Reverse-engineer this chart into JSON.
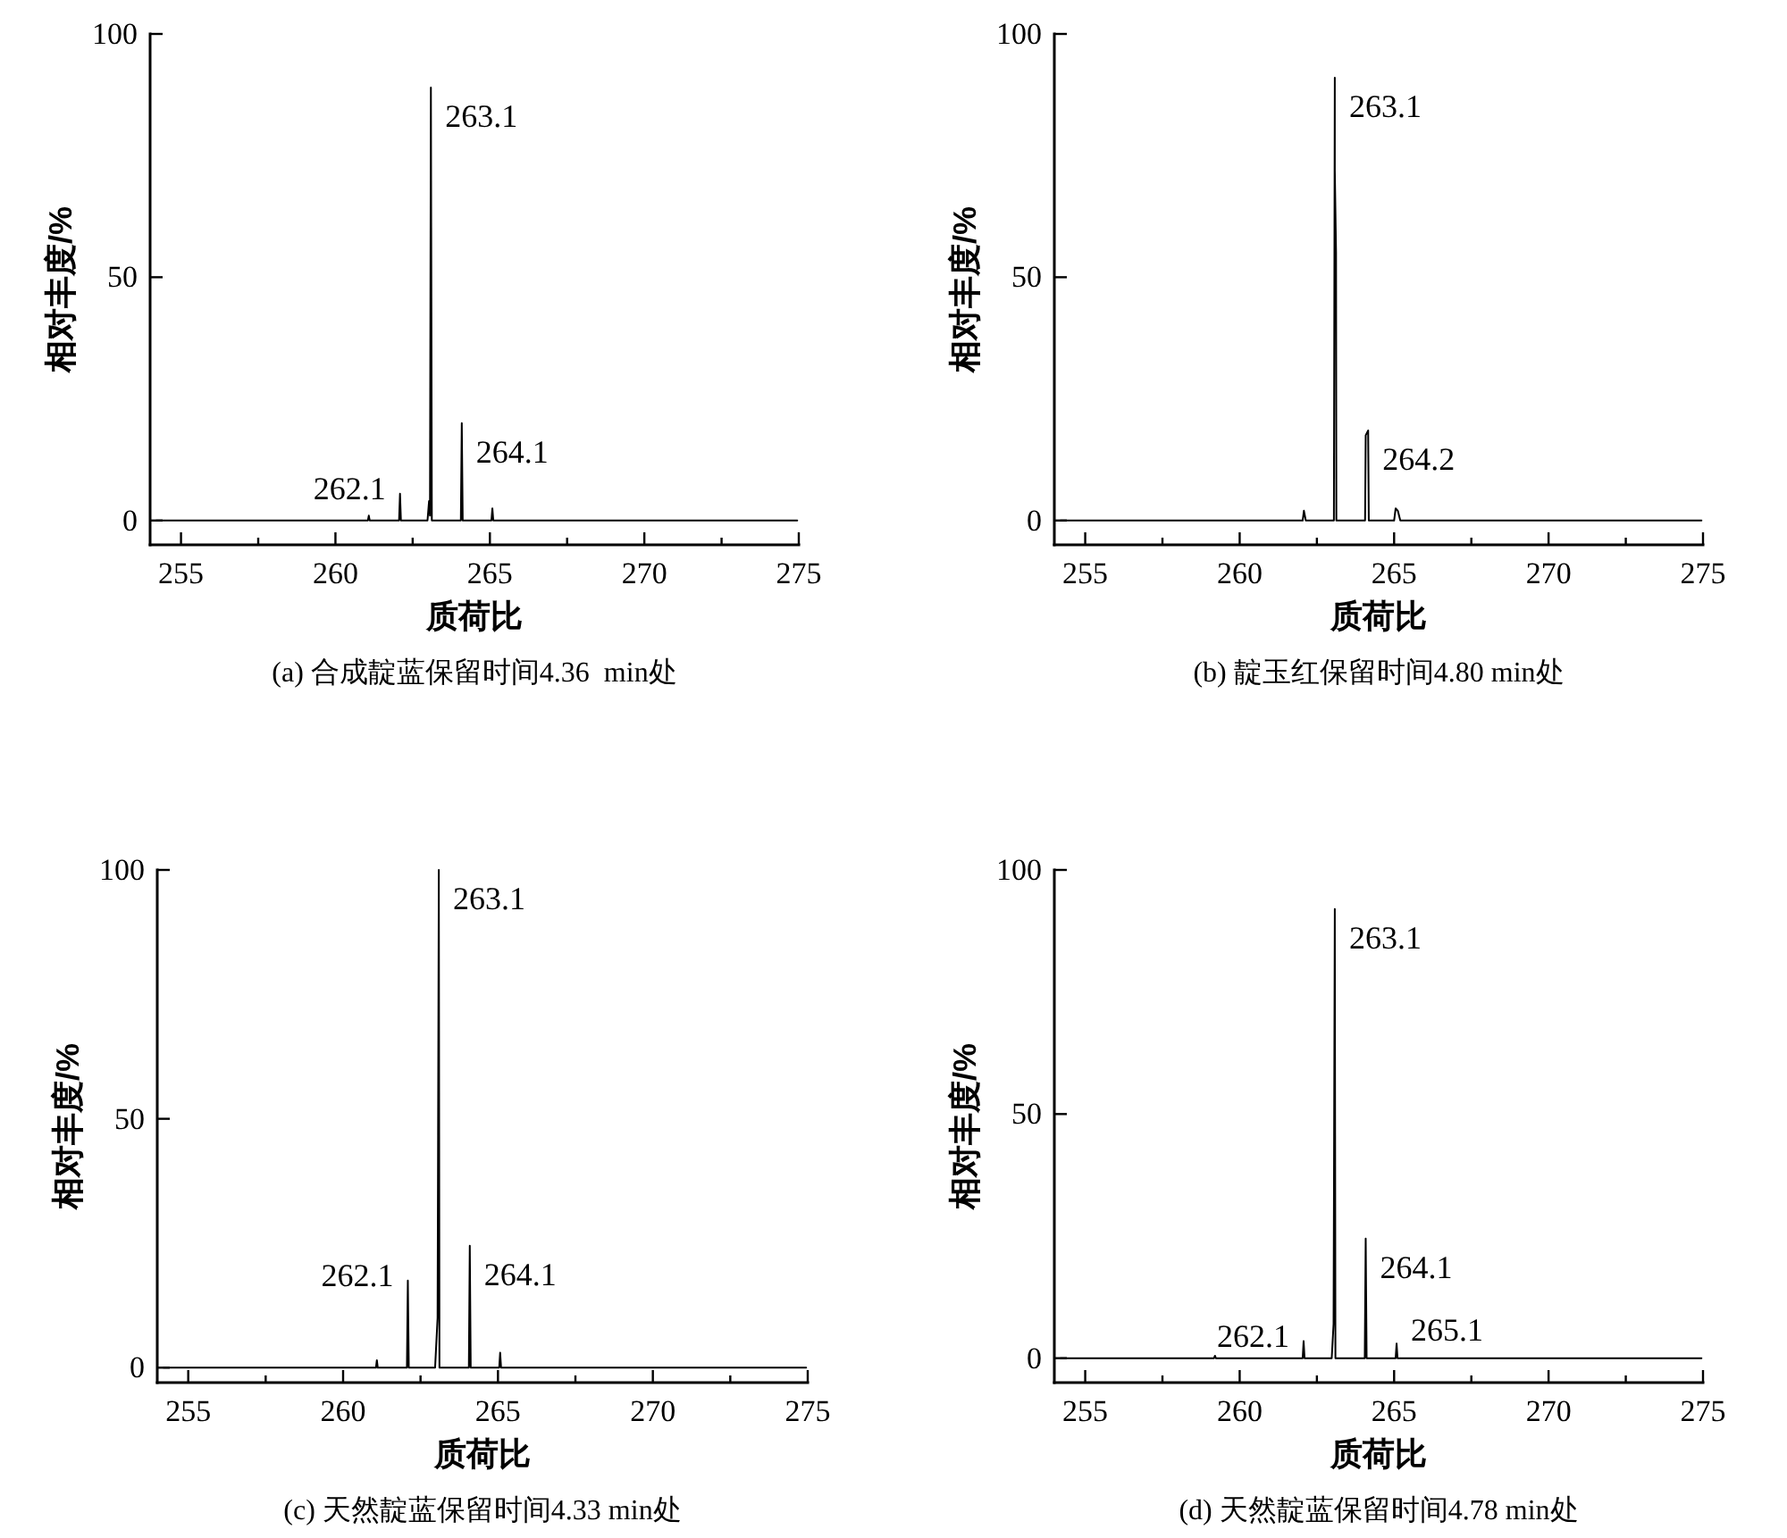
{
  "chart_data": [
    {
      "type": "line",
      "title": "(a) 合成靛蓝保留时间4.36  min处",
      "xlabel": "质荷比",
      "ylabel": "相对丰度/%",
      "color": "#000000",
      "x": [
        254.2,
        261.05,
        261.08,
        261.11,
        262.06,
        262.09,
        262.12,
        262.98,
        263.03,
        263.06,
        263.09,
        263.12,
        264.06,
        264.09,
        264.12,
        265.05,
        265.08,
        265.11,
        274.95
      ],
      "values": [
        0,
        0,
        1,
        0,
        0,
        5.5,
        0,
        0,
        4,
        1,
        89,
        0,
        0,
        20,
        0,
        0,
        2.5,
        0,
        0
      ],
      "xlim": [
        254,
        275
      ],
      "ylim": [
        -5,
        100
      ],
      "xticks": [
        255,
        {
          "value": 257.5,
          "label": null
        },
        260,
        {
          "value": 262.5,
          "label": null
        },
        265,
        {
          "value": 267.5,
          "label": null
        },
        270,
        {
          "value": 272.5,
          "label": null
        },
        275
      ],
      "yticks": [
        0,
        50,
        100
      ],
      "annotations": [
        {
          "text": "263.1",
          "x": 263.09,
          "y": 89
        },
        {
          "text": "262.1",
          "x": 262.09,
          "y": 5.5
        },
        {
          "text": "264.1",
          "x": 264.09,
          "y": 20
        }
      ]
    },
    {
      "type": "line",
      "title": "(b) 靛玉红保留时间4.80 min处",
      "xlabel": "质荷比",
      "ylabel": "相对丰度/%",
      "color": "#000000",
      "x": [
        254.2,
        262.04,
        262.08,
        262.14,
        263.05,
        263.08,
        263.08,
        263.12,
        263.13,
        264.06,
        264.08,
        264.16,
        264.18,
        265.0,
        265.05,
        265.12,
        265.2,
        274.95
      ],
      "values": [
        0,
        0,
        2,
        0,
        0,
        91,
        72,
        55,
        0,
        0,
        17.5,
        18.5,
        0,
        0,
        2.5,
        2,
        0,
        0
      ],
      "xlim": [
        254,
        275
      ],
      "ylim": [
        -5,
        100
      ],
      "xticks": [
        255,
        {
          "value": 257.5,
          "label": null
        },
        260,
        {
          "value": 262.5,
          "label": null
        },
        265,
        {
          "value": 267.5,
          "label": null
        },
        270,
        {
          "value": 272.5,
          "label": null
        },
        275
      ],
      "yticks": [
        0,
        50,
        100
      ],
      "annotations": [
        {
          "text": "263.1",
          "x": 263.08,
          "y": 91
        },
        {
          "text": "264.2",
          "x": 264.16,
          "y": 18.5
        }
      ]
    },
    {
      "type": "line",
      "title": "(c) 天然靛蓝保留时间4.33 min处",
      "xlabel": "质荷比",
      "ylabel": "相对丰度/%",
      "color": "#000000",
      "x": [
        254.2,
        261.06,
        261.09,
        261.12,
        262.06,
        262.09,
        262.12,
        262.97,
        263.05,
        263.09,
        263.11,
        264.06,
        264.09,
        264.12,
        265.04,
        265.07,
        265.1,
        274.95
      ],
      "values": [
        0,
        0,
        1.5,
        0,
        0,
        17.5,
        0,
        0,
        10,
        100,
        0,
        0,
        24.5,
        0,
        0,
        3,
        0,
        0
      ],
      "xlim": [
        254,
        275
      ],
      "ylim": [
        -3,
        100
      ],
      "xticks": [
        255,
        {
          "value": 257.5,
          "label": null
        },
        260,
        {
          "value": 262.5,
          "label": null
        },
        265,
        {
          "value": 267.5,
          "label": null
        },
        270,
        {
          "value": 272.5,
          "label": null
        },
        275
      ],
      "yticks": [
        0,
        50,
        100
      ],
      "annotations": [
        {
          "text": "263.1",
          "x": 263.09,
          "y": 100
        },
        {
          "text": "262.1",
          "x": 262.09,
          "y": 17.5
        },
        {
          "text": "264.1",
          "x": 264.09,
          "y": 24.5
        }
      ]
    },
    {
      "type": "line",
      "title": "(d) 天然靛蓝保留时间4.78 min处",
      "xlabel": "质荷比",
      "ylabel": "相对丰度/%",
      "color": "#000000",
      "x": [
        254.2,
        259.17,
        259.2,
        259.23,
        262.04,
        262.07,
        262.1,
        262.98,
        263.04,
        263.08,
        263.1,
        264.05,
        264.08,
        264.11,
        265.05,
        265.08,
        265.11,
        274.95
      ],
      "values": [
        0,
        0,
        0.5,
        0,
        0,
        3.5,
        0,
        0,
        7,
        92,
        0,
        0,
        24.5,
        0,
        0,
        3,
        0,
        0
      ],
      "xlim": [
        254,
        275
      ],
      "ylim": [
        -5,
        100
      ],
      "xticks": [
        255,
        {
          "value": 257.5,
          "label": null
        },
        260,
        {
          "value": 262.5,
          "label": null
        },
        265,
        {
          "value": 267.5,
          "label": null
        },
        270,
        {
          "value": 272.5,
          "label": null
        },
        275
      ],
      "yticks": [
        0,
        50,
        100
      ],
      "annotations": [
        {
          "text": "263.1",
          "x": 263.08,
          "y": 92
        },
        {
          "text": "262.1",
          "x": 262.07,
          "y": 3.5
        },
        {
          "text": "264.1",
          "x": 264.08,
          "y": 24.5
        },
        {
          "text": "265.1",
          "x": 265.08,
          "y": 3
        }
      ]
    }
  ]
}
